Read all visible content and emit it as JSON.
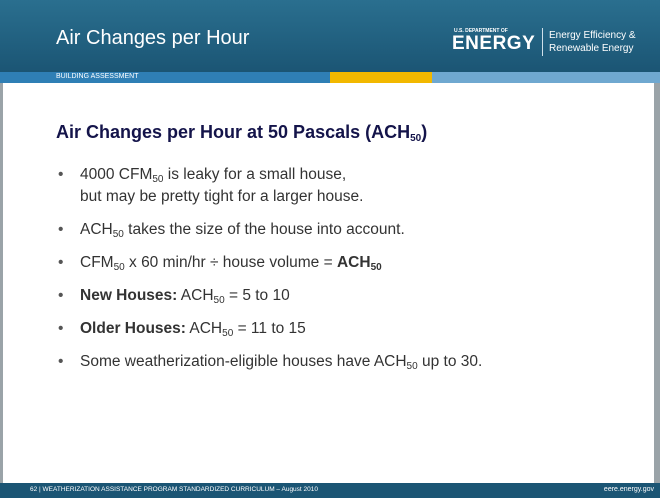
{
  "header": {
    "title": "Air Changes per Hour",
    "subtitle": "BUILDING ASSESSMENT",
    "logo": {
      "small": "U.S. DEPARTMENT OF",
      "big": "ENERGY",
      "right1": "Energy Efficiency &",
      "right2": "Renewable Energy"
    }
  },
  "heading": [
    {
      "text": "Air Changes per Hour at 50 Pascals (ACH"
    },
    {
      "text": "50",
      "sub": true
    },
    {
      "text": ")"
    }
  ],
  "bullets": [
    [
      [
        {
          "text": "4000 CFM"
        },
        {
          "text": "50",
          "sub": true
        },
        {
          "text": " is leaky for a small house,"
        }
      ],
      [
        {
          "text": "but may be pretty tight for a larger house."
        }
      ]
    ],
    [
      [
        {
          "text": "ACH"
        },
        {
          "text": "50",
          "sub": true
        },
        {
          "text": " takes the size of the house into account."
        }
      ]
    ],
    [
      [
        {
          "text": "CFM"
        },
        {
          "text": "50",
          "sub": true
        },
        {
          "text": " x 60 min/hr ÷ house volume = "
        },
        {
          "text": "ACH",
          "bold": true
        },
        {
          "text": "50",
          "sub": true,
          "bold": true
        }
      ]
    ],
    [
      [
        {
          "text": "New Houses:",
          "bold": true
        },
        {
          "text": " ACH"
        },
        {
          "text": "50",
          "sub": true
        },
        {
          "text": " = 5 to 10"
        }
      ]
    ],
    [
      [
        {
          "text": "Older Houses:",
          "bold": true
        },
        {
          "text": " ACH"
        },
        {
          "text": "50",
          "sub": true
        },
        {
          "text": " = 11 to 15"
        }
      ]
    ],
    [
      [
        {
          "text": "Some weatherization-eligible houses have ACH"
        },
        {
          "text": "50",
          "sub": true
        },
        {
          "text": " up to 30."
        }
      ]
    ]
  ],
  "footer": {
    "left": "62 | WEATHERIZATION ASSISTANCE PROGRAM STANDARDIZED CURRICULUM – August 2010",
    "right": "eere.energy.gov"
  }
}
